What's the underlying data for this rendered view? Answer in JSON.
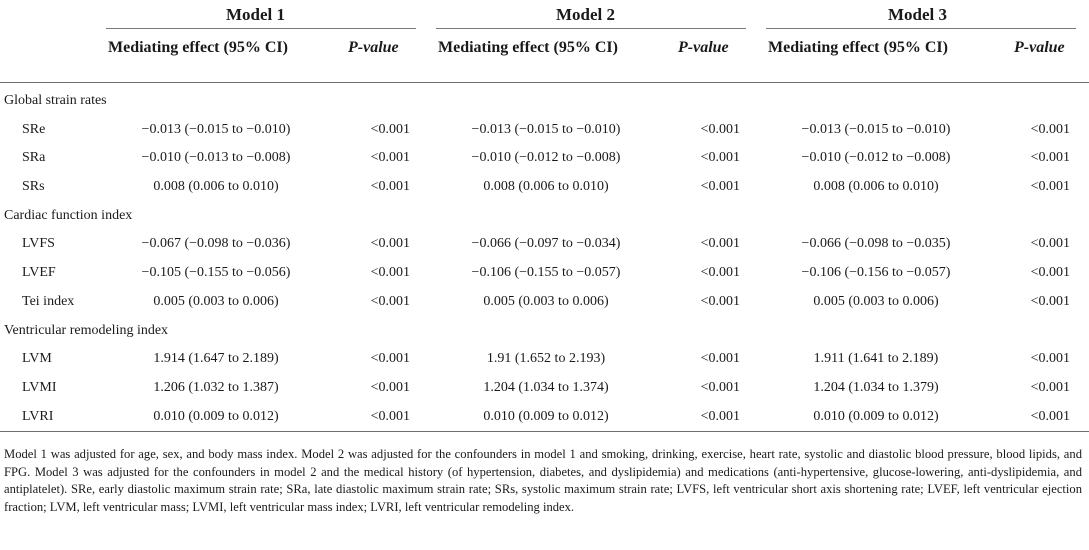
{
  "models": [
    "Model 1",
    "Model 2",
    "Model 3"
  ],
  "col_effect": "Mediating effect (95% CI)",
  "col_p": "P-value",
  "sections": [
    {
      "title": "Global strain rates",
      "rows": [
        {
          "label": "SRe",
          "m1": "−0.013 (−0.015 to −0.010)",
          "p1": "<0.001",
          "m2": "−0.013 (−0.015 to −0.010)",
          "p2": "<0.001",
          "m3": "−0.013 (−0.015 to −0.010)",
          "p3": "<0.001"
        },
        {
          "label": "SRa",
          "m1": "−0.010 (−0.013 to −0.008)",
          "p1": "<0.001",
          "m2": "−0.010 (−0.012 to −0.008)",
          "p2": "<0.001",
          "m3": "−0.010 (−0.012 to −0.008)",
          "p3": "<0.001"
        },
        {
          "label": "SRs",
          "m1": "0.008 (0.006 to 0.010)",
          "p1": "<0.001",
          "m2": "0.008 (0.006 to 0.010)",
          "p2": "<0.001",
          "m3": "0.008 (0.006 to 0.010)",
          "p3": "<0.001"
        }
      ]
    },
    {
      "title": "Cardiac function index",
      "rows": [
        {
          "label": "LVFS",
          "m1": "−0.067 (−0.098 to −0.036)",
          "p1": "<0.001",
          "m2": "−0.066 (−0.097 to −0.034)",
          "p2": "<0.001",
          "m3": "−0.066 (−0.098 to −0.035)",
          "p3": "<0.001"
        },
        {
          "label": "LVEF",
          "m1": "−0.105 (−0.155 to −0.056)",
          "p1": "<0.001",
          "m2": "−0.106 (−0.155 to −0.057)",
          "p2": "<0.001",
          "m3": "−0.106 (−0.156 to −0.057)",
          "p3": "<0.001"
        },
        {
          "label": "Tei index",
          "m1": "0.005 (0.003 to 0.006)",
          "p1": "<0.001",
          "m2": "0.005 (0.003 to 0.006)",
          "p2": "<0.001",
          "m3": "0.005 (0.003 to 0.006)",
          "p3": "<0.001"
        }
      ]
    },
    {
      "title": "Ventricular remodeling index",
      "rows": [
        {
          "label": "LVM",
          "m1": "1.914 (1.647 to 2.189)",
          "p1": "<0.001",
          "m2": "1.91 (1.652 to 2.193)",
          "p2": "<0.001",
          "m3": "1.911 (1.641 to 2.189)",
          "p3": "<0.001"
        },
        {
          "label": "LVMI",
          "m1": "1.206 (1.032 to 1.387)",
          "p1": "<0.001",
          "m2": "1.204 (1.034 to 1.374)",
          "p2": "<0.001",
          "m3": "1.204 (1.034 to 1.379)",
          "p3": "<0.001"
        },
        {
          "label": "LVRI",
          "m1": "0.010 (0.009 to 0.012)",
          "p1": "<0.001",
          "m2": "0.010 (0.009 to 0.012)",
          "p2": "<0.001",
          "m3": "0.010 (0.009 to 0.012)",
          "p3": "<0.001"
        }
      ]
    }
  ],
  "footnote": "Model 1 was adjusted for age, sex, and body mass index. Model 2 was adjusted for the confounders in model 1 and smoking, drinking, exercise, heart rate, systolic and diastolic blood pressure, blood lipids, and FPG. Model 3 was adjusted for the confounders in model 2 and the medical history (of hypertension, diabetes, and dyslipidemia) and medications (anti-hypertensive, glucose-lowering, anti-dyslipidemia, and antiplatelet). SRe, early diastolic maximum strain rate; SRa, late diastolic maximum strain rate; SRs, systolic maximum strain rate; LVFS, left ventricular short axis shortening rate; LVEF, left ventricular ejection fraction; LVM, left ventricular mass; LVMI, left ventricular mass index; LVRI, left ventricular remodeling index."
}
